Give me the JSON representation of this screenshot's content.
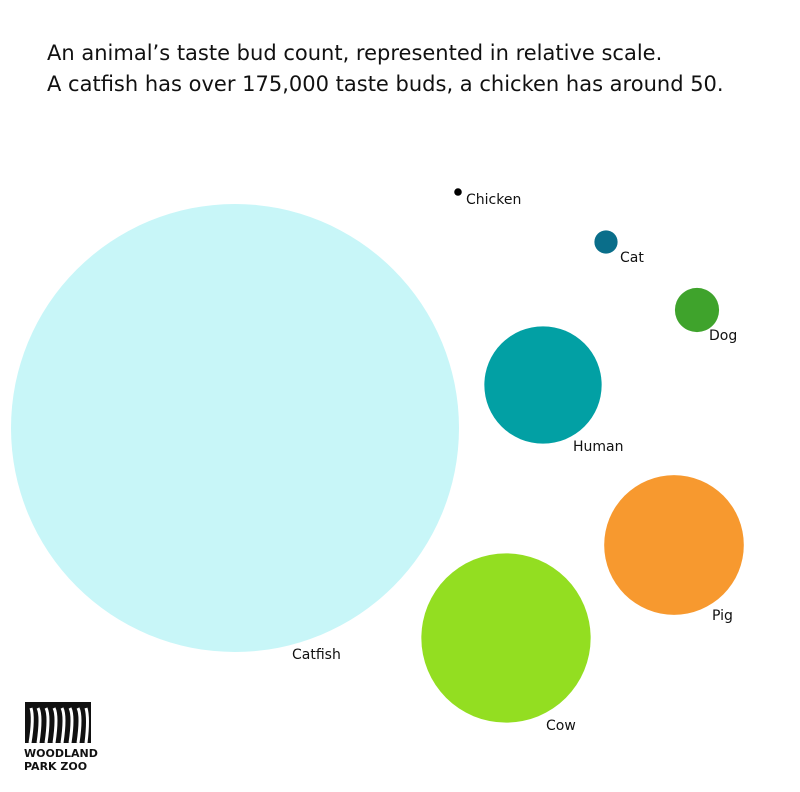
{
  "chart_data": {
    "type": "bubble",
    "title": "An animal’s taste bud count, represented in relative scale.",
    "subtitle": "A catfish has over 175,000 taste buds, a chicken has around 50.",
    "categories": [
      "Catfish",
      "Chicken",
      "Cat",
      "Dog",
      "Human",
      "Pig",
      "Cow"
    ],
    "values": [
      175000,
      50,
      470,
      1700,
      12000,
      17000,
      25000
    ],
    "colors": [
      "#c8f6f8",
      "#000000",
      "#0a6e8a",
      "#3fa32c",
      "#02a0a4",
      "#f7992f",
      "#93de21"
    ]
  },
  "logo": [
    "WOODLAND",
    "PARK ZOO"
  ]
}
